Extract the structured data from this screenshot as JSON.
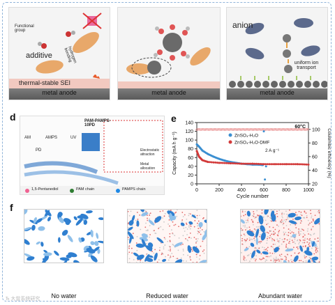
{
  "panels": {
    "a": {
      "label": "a",
      "functional_group": "Functional group",
      "hydrogen_bonding": "hydrogen bonding",
      "additive": "additive",
      "sei": "thermal-stable SEI",
      "anode": "metal anode"
    },
    "b": {
      "label": "b",
      "anode": "metal anode"
    },
    "c": {
      "label": "c",
      "anion": "anion",
      "transport": "uniform ion transport",
      "anode": "metal anode"
    },
    "d": {
      "label": "d",
      "title": "PAM-PAMPS-10PD",
      "am": "AM",
      "ampsl": "AMPS",
      "uv": "UV",
      "pd": "PD",
      "legend": [
        "1,5-Pentanediol",
        "PAM chain",
        "PAMPS chain"
      ],
      "notes": [
        "Electrostatic attraction",
        "Metal allocation"
      ]
    },
    "f": {
      "label": "f",
      "captions": [
        "No water",
        "Reduced water",
        "Abundant water"
      ]
    }
  },
  "chart_data": {
    "type": "scatter",
    "label": "e",
    "xlabel": "Cycle number",
    "ylabel": "Capacity (mA h g⁻¹)",
    "y2label": "Coulombic efficiency (%)",
    "xlim": [
      0,
      1000
    ],
    "ylim": [
      0,
      140
    ],
    "y2lim": [
      20,
      110
    ],
    "xticks": [
      0,
      200,
      400,
      600,
      800,
      1000
    ],
    "yticks": [
      0,
      20,
      40,
      60,
      80,
      100,
      120,
      140
    ],
    "y2ticks": [
      20,
      40,
      60,
      80,
      100
    ],
    "annotation_temp": "60°C",
    "annotation_rate": "2 A g⁻¹",
    "series": [
      {
        "name": "ZnSO₄-H₂O",
        "color": "#3b8fd1",
        "x": [
          0,
          20,
          50,
          100,
          150,
          200,
          250,
          300,
          350,
          400,
          450,
          500,
          550,
          590,
          600,
          610,
          620
        ],
        "y": [
          90,
          85,
          76,
          68,
          62,
          57,
          53,
          50,
          48,
          46,
          45,
          44,
          44,
          43,
          120,
          10,
          40
        ]
      },
      {
        "name": "ZnSO₄-H₂O-DMF",
        "color": "#d23a3a",
        "x": [
          0,
          20,
          50,
          100,
          200,
          300,
          400,
          500,
          600,
          700,
          800,
          900,
          1000
        ],
        "y": [
          75,
          62,
          54,
          50,
          48,
          47,
          46,
          46,
          45,
          45,
          45,
          45,
          44
        ]
      }
    ],
    "ce": {
      "color": "#e88a8a",
      "value": 100
    }
  },
  "watermark": "Ѣ 大曾系统研究"
}
